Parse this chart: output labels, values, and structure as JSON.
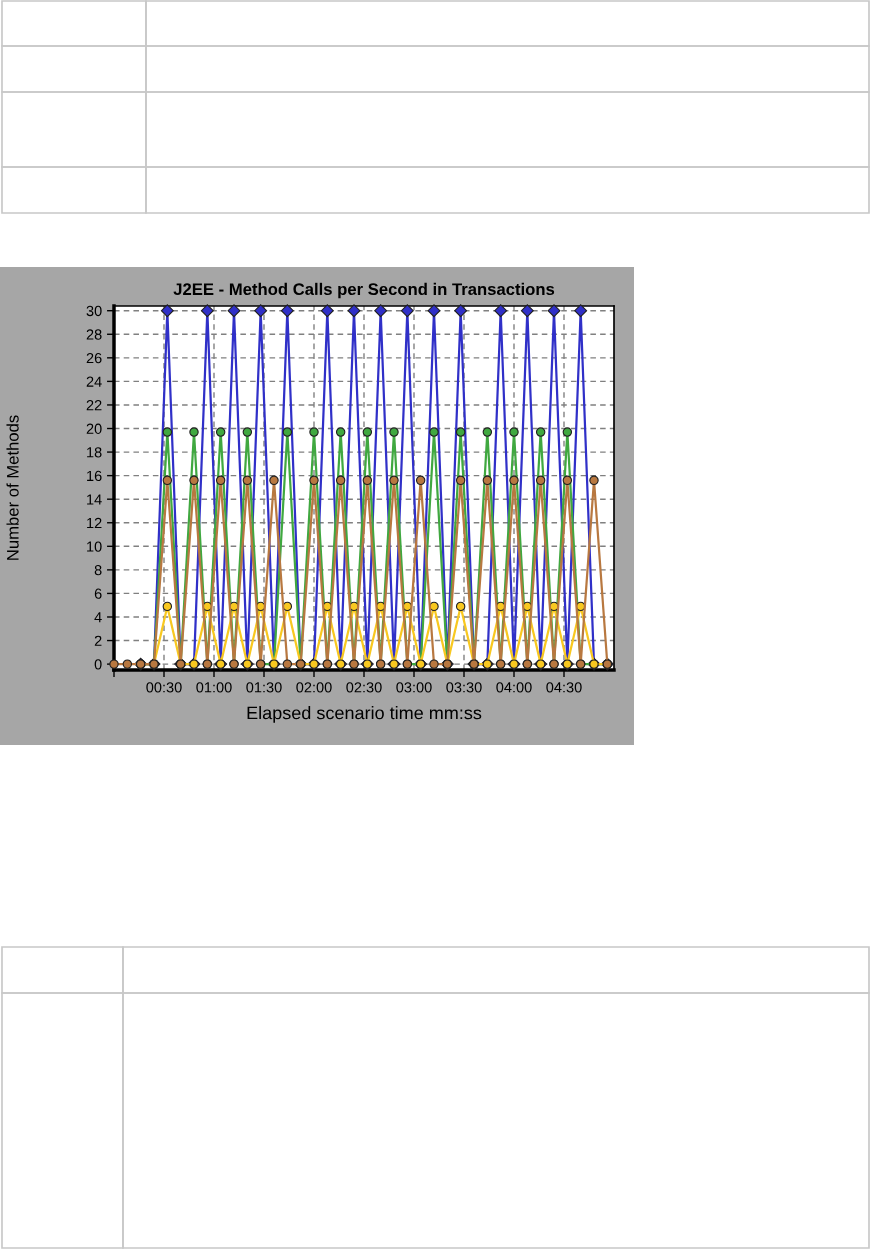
{
  "chart_data": {
    "type": "line",
    "title": "J2EE - Method Calls per Second in Transactions",
    "xlabel": "Elapsed scenario time mm:ss",
    "ylabel": "Number of Methods",
    "x": [
      0,
      8,
      16,
      24,
      32,
      40,
      48,
      56,
      64,
      72,
      80,
      88,
      96,
      104,
      112,
      120,
      128,
      136,
      144,
      152,
      160,
      168,
      176,
      184,
      192,
      200,
      208,
      216,
      224,
      232,
      240,
      248,
      256,
      264,
      272,
      280,
      288,
      296
    ],
    "xlim": [
      0,
      300
    ],
    "xticks": [
      {
        "value": 0,
        "label": null
      },
      {
        "value": 30,
        "label": "00:30"
      },
      {
        "value": 60,
        "label": "01:00"
      },
      {
        "value": 90,
        "label": "01:30"
      },
      {
        "value": 120,
        "label": "02:00"
      },
      {
        "value": 150,
        "label": "02:30"
      },
      {
        "value": 180,
        "label": "03:00"
      },
      {
        "value": 210,
        "label": "03:30"
      },
      {
        "value": 240,
        "label": "04:00"
      },
      {
        "value": 270,
        "label": "04:30"
      }
    ],
    "ylim": [
      -0.5,
      30.4
    ],
    "yticks": [
      0,
      2,
      4,
      6,
      8,
      10,
      12,
      14,
      16,
      18,
      20,
      22,
      24,
      26,
      28,
      30
    ],
    "grid": true,
    "marker": "circle",
    "line_style": "solid",
    "series": [
      {
        "color": "#3030c8",
        "marker": "diamond",
        "values": [
          null,
          null,
          0,
          0,
          30,
          0,
          0,
          30,
          0,
          30,
          0,
          30,
          0,
          30,
          0,
          0,
          30,
          0,
          30,
          0,
          30,
          0,
          30,
          0,
          30,
          0,
          30,
          0,
          0,
          30,
          0,
          30,
          0,
          30,
          0,
          30,
          0,
          0
        ]
      },
      {
        "color": "#40a840",
        "values": [
          null,
          null,
          0,
          0,
          19.7,
          0,
          19.7,
          0,
          19.7,
          0,
          19.7,
          0,
          0,
          19.7,
          0,
          19.7,
          0,
          19.7,
          0,
          19.7,
          0,
          19.7,
          0,
          0,
          19.7,
          0,
          19.7,
          0,
          19.7,
          0,
          19.7,
          0,
          19.7,
          0,
          19.7,
          0,
          0,
          0
        ]
      },
      {
        "color": "#f8c820",
        "values": [
          null,
          null,
          0,
          0,
          4.9,
          0,
          0,
          4.9,
          0,
          4.9,
          0,
          4.9,
          0,
          4.9,
          0,
          0,
          4.9,
          0,
          4.9,
          0,
          4.9,
          0,
          4.9,
          0,
          4.9,
          0,
          4.9,
          0,
          0,
          4.9,
          0,
          4.9,
          0,
          4.9,
          0,
          4.9,
          0,
          0
        ]
      },
      {
        "color": "#b87840",
        "values": [
          0,
          0,
          0,
          0,
          15.6,
          0,
          15.6,
          0,
          15.6,
          0,
          15.6,
          0,
          15.6,
          0,
          0,
          15.6,
          0,
          15.6,
          0,
          15.6,
          0,
          15.6,
          0,
          15.6,
          0,
          0,
          15.6,
          0,
          15.6,
          0,
          15.6,
          0,
          15.6,
          0,
          15.6,
          0,
          15.6,
          0
        ]
      }
    ]
  }
}
